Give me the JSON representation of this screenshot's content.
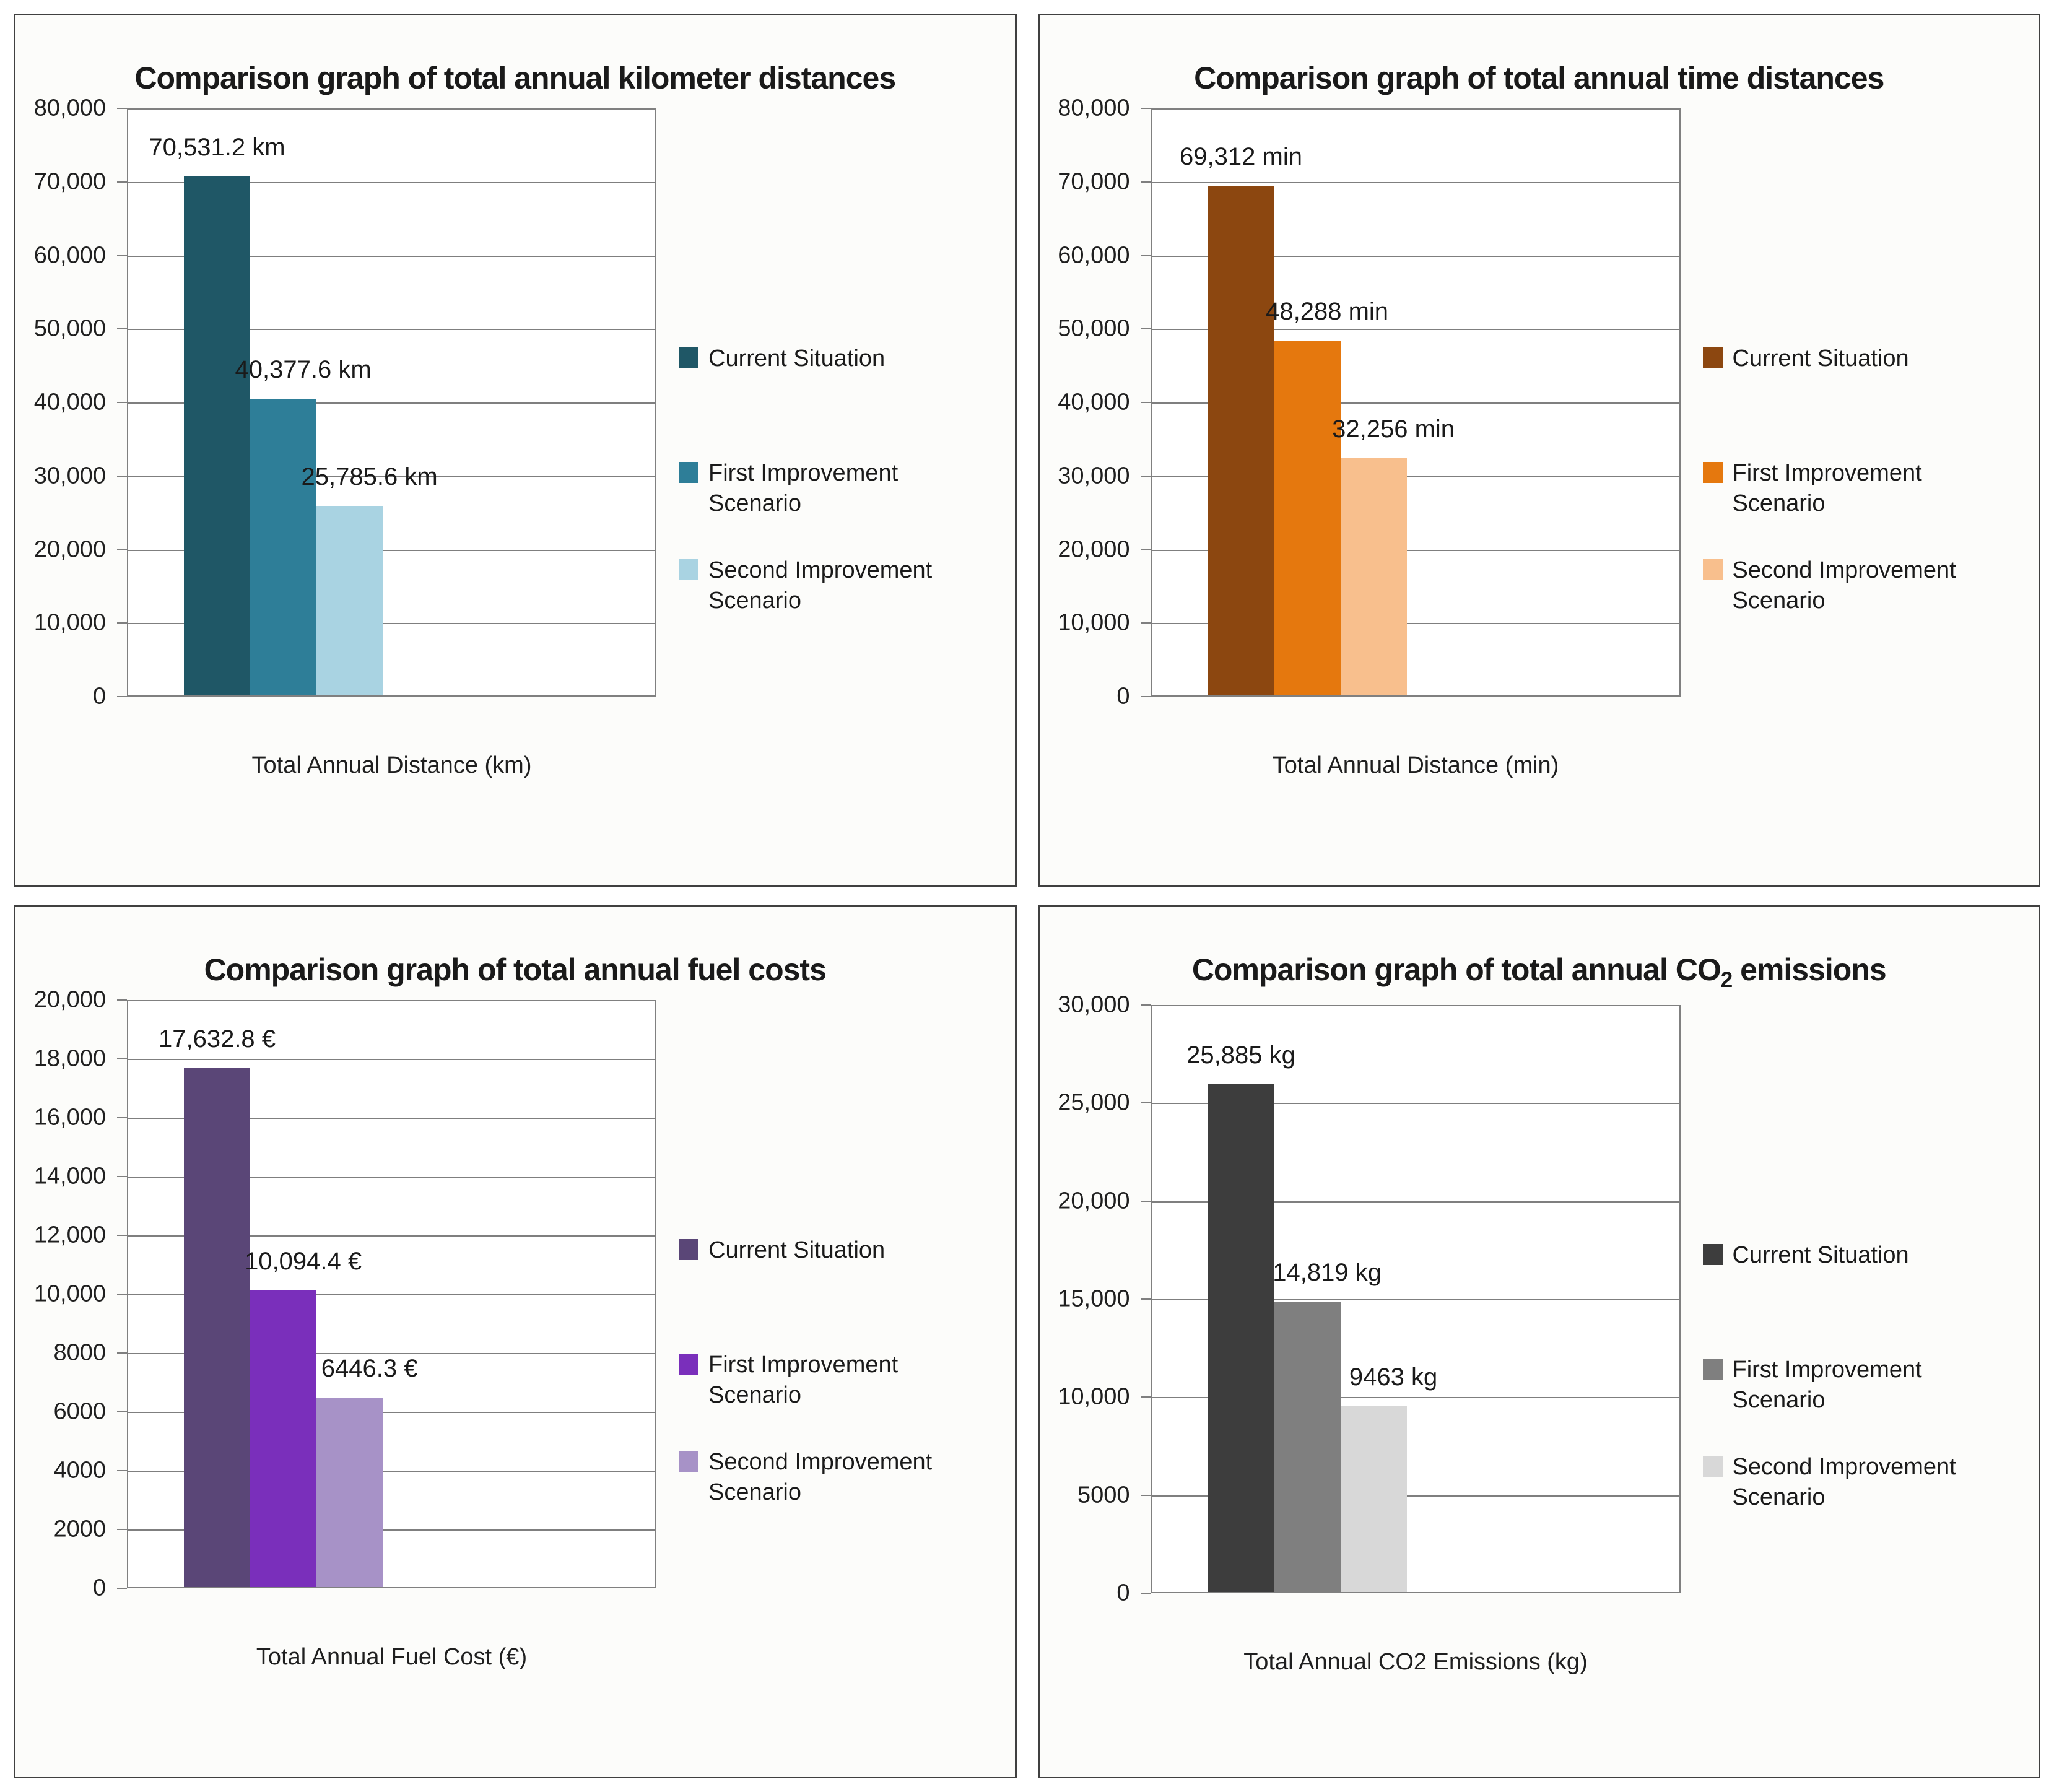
{
  "page": {
    "background": "#ffffff",
    "grid_color": "#7f7f7f",
    "panel_border_color": "#404040",
    "text_color": "#1a1a1a"
  },
  "chart_data": [
    {
      "type": "bar",
      "title": "Comparison graph of total annual kilometer distances",
      "xlabel": "Total Annual Distance (km)",
      "ylabel": "",
      "ylim": [
        0,
        80000
      ],
      "ytick_labels": [
        "80,000",
        "70,000",
        "60,000",
        "50,000",
        "40,000",
        "30,000",
        "20,000",
        "10,000",
        "0"
      ],
      "grid": true,
      "legend_position": "right",
      "categories": [
        "Total Annual Distance (km)"
      ],
      "series": [
        {
          "name": "Current Situation",
          "value": 70531.2,
          "label": "70,531.2 km",
          "color": "#1F5766"
        },
        {
          "name": "First Improvement Scenario",
          "value": 40377.6,
          "label": "40,377.6 km",
          "color": "#2E7E98"
        },
        {
          "name": "Second Improvement Scenario",
          "value": 25785.6,
          "label": "25,785.6 km",
          "color": "#A9D3E2"
        }
      ]
    },
    {
      "type": "bar",
      "title": "Comparison graph of total annual time distances",
      "xlabel": "Total Annual Distance (min)",
      "ylabel": "",
      "ylim": [
        0,
        80000
      ],
      "ytick_labels": [
        "80,000",
        "70,000",
        "60,000",
        "50,000",
        "40,000",
        "30,000",
        "20,000",
        "10,000",
        "0"
      ],
      "grid": true,
      "legend_position": "right",
      "categories": [
        "Total Annual Distance (min)"
      ],
      "series": [
        {
          "name": "Current Situation",
          "value": 69312,
          "label": "69,312 min",
          "color": "#8C4710"
        },
        {
          "name": "First Improvement Scenario",
          "value": 48288,
          "label": "48,288 min",
          "color": "#E5780E"
        },
        {
          "name": "Second Improvement Scenario",
          "value": 32256,
          "label": "32,256 min",
          "color": "#F8BF8D"
        }
      ]
    },
    {
      "type": "bar",
      "title": "Comparison graph of total annual fuel costs",
      "xlabel": "Total Annual Fuel Cost  (€)",
      "ylabel": "",
      "ylim": [
        0,
        20000
      ],
      "ytick_labels": [
        "20,000",
        "18,000",
        "16,000",
        "14,000",
        "12,000",
        "10,000",
        "8000",
        "6000",
        "4000",
        "2000",
        "0"
      ],
      "grid": true,
      "legend_position": "right",
      "categories": [
        "Total Annual Fuel Cost (€)"
      ],
      "series": [
        {
          "name": "Current Situation",
          "value": 17632.8,
          "label": "17,632.8 €",
          "color": "#5A4677"
        },
        {
          "name": "First Improvement Scenario",
          "value": 10094.4,
          "label": "10,094.4 €",
          "color": "#7A2FBB"
        },
        {
          "name": "Second Improvement Scenario",
          "value": 6446.3,
          "label": "6446.3 €",
          "color": "#A792C7"
        }
      ]
    },
    {
      "type": "bar",
      "title": "Comparison graph of total annual CO2 emissions",
      "xlabel": "Total Annual CO2 Emissions  (kg)",
      "ylabel": "",
      "ylim": [
        0,
        30000
      ],
      "ytick_labels": [
        "30,000",
        "25,000",
        "20,000",
        "15,000",
        "10,000",
        "5000",
        "0"
      ],
      "grid": true,
      "legend_position": "right",
      "categories": [
        "Total Annual CO2 Emissions (kg)"
      ],
      "series": [
        {
          "name": "Current Situation",
          "value": 25885,
          "label": "25,885 kg",
          "color": "#3D3D3D"
        },
        {
          "name": "First Improvement Scenario",
          "value": 14819,
          "label": "14,819 kg",
          "color": "#7F7F7F"
        },
        {
          "name": "Second Improvement Scenario",
          "value": 9463,
          "label": "9463 kg",
          "color": "#D8D8D8"
        }
      ]
    }
  ]
}
